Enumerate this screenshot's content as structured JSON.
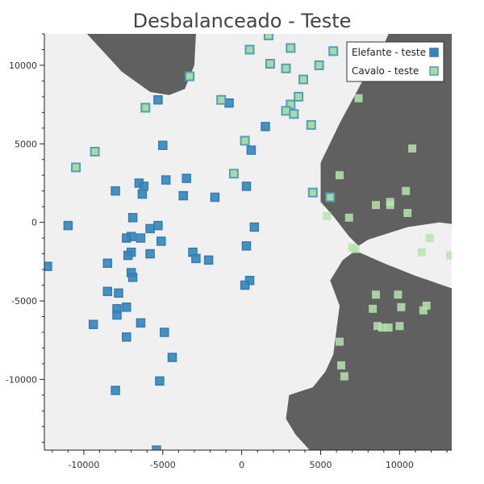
{
  "chart_data": {
    "type": "scatter",
    "title": "Desbalanceado - Teste",
    "xlabel": "",
    "ylabel": "",
    "xlim": [
      -12500,
      13300
    ],
    "ylim": [
      -14500,
      12000
    ],
    "grid": false,
    "legend_position": "top-right",
    "x_ticks": [
      -10000,
      -5000,
      0,
      5000,
      10000
    ],
    "y_ticks": [
      -10000,
      -5000,
      0,
      5000,
      10000
    ],
    "colors": {
      "region_light": "#f0f0f0",
      "region_dark": "#606060",
      "elefante_fill": "#2f87bf",
      "elefante_edge": "#3a7ab0",
      "cavalo_fill": "#a9dba0",
      "cavalo_edge": "#4f9ec4",
      "cavalo_plain_fill": "#b7e3ae"
    },
    "series": [
      {
        "name": "Elefante - teste",
        "points": [
          [
            -5300,
            7800
          ],
          [
            -800,
            7600
          ],
          [
            -5000,
            4900
          ],
          [
            1500,
            6100
          ],
          [
            600,
            4600
          ],
          [
            -8000,
            2000
          ],
          [
            -6500,
            2500
          ],
          [
            -6200,
            2300
          ],
          [
            -6300,
            1800
          ],
          [
            -4800,
            2700
          ],
          [
            -3500,
            2800
          ],
          [
            -3700,
            1700
          ],
          [
            -1700,
            1600
          ],
          [
            300,
            2300
          ],
          [
            -6900,
            300
          ],
          [
            -11000,
            -200
          ],
          [
            -7000,
            -900
          ],
          [
            -7300,
            -1000
          ],
          [
            -6400,
            -1000
          ],
          [
            -5800,
            -400
          ],
          [
            -5300,
            -200
          ],
          [
            -5100,
            -1200
          ],
          [
            -7000,
            -1900
          ],
          [
            -7200,
            -2100
          ],
          [
            -5800,
            -2000
          ],
          [
            -12300,
            -2800
          ],
          [
            -8500,
            -2600
          ],
          [
            -7000,
            -3200
          ],
          [
            -6900,
            -3500
          ],
          [
            -3100,
            -1900
          ],
          [
            -2900,
            -2300
          ],
          [
            -2100,
            -2400
          ],
          [
            300,
            -1500
          ],
          [
            800,
            -300
          ],
          [
            500,
            -3700
          ],
          [
            200,
            -4000
          ],
          [
            -8500,
            -4400
          ],
          [
            -7800,
            -4500
          ],
          [
            -7900,
            -5500
          ],
          [
            -7900,
            -5900
          ],
          [
            -7300,
            -5400
          ],
          [
            -9400,
            -6500
          ],
          [
            -6400,
            -6400
          ],
          [
            -4900,
            -7000
          ],
          [
            -7300,
            -7300
          ],
          [
            -4400,
            -8600
          ],
          [
            -5200,
            -10100
          ],
          [
            -8000,
            -10700
          ],
          [
            -5400,
            -14500
          ]
        ]
      },
      {
        "name": "Cavalo - teste",
        "points": [
          [
            1700,
            11900
          ],
          [
            500,
            11000
          ],
          [
            3100,
            11100
          ],
          [
            5800,
            10900
          ],
          [
            1800,
            10100
          ],
          [
            2800,
            9800
          ],
          [
            4900,
            10000
          ],
          [
            3900,
            9100
          ],
          [
            -3300,
            9300
          ],
          [
            -6100,
            7300
          ],
          [
            -1300,
            7800
          ],
          [
            3600,
            8000
          ],
          [
            3100,
            7500
          ],
          [
            2800,
            7100
          ],
          [
            3300,
            6900
          ],
          [
            4400,
            6200
          ],
          [
            -9300,
            4500
          ],
          [
            200,
            5200
          ],
          [
            -10500,
            3500
          ],
          [
            -500,
            3100
          ],
          [
            4500,
            1900
          ],
          [
            5600,
            1600
          ]
        ]
      },
      {
        "name": "",
        "points": [
          [
            7400,
            7900
          ],
          [
            10800,
            4700
          ],
          [
            6200,
            3000
          ],
          [
            10400,
            2000
          ],
          [
            9400,
            1300
          ],
          [
            8500,
            1100
          ],
          [
            9400,
            1100
          ],
          [
            10500,
            600
          ],
          [
            5400,
            400
          ],
          [
            6800,
            300
          ],
          [
            11900,
            -1000
          ],
          [
            7000,
            -1600
          ],
          [
            7200,
            -1700
          ],
          [
            11400,
            -1900
          ],
          [
            13200,
            -2100
          ],
          [
            8500,
            -4600
          ],
          [
            9900,
            -4600
          ],
          [
            8300,
            -5500
          ],
          [
            10100,
            -5400
          ],
          [
            11700,
            -5300
          ],
          [
            11500,
            -5600
          ],
          [
            8600,
            -6600
          ],
          [
            8900,
            -6700
          ],
          [
            9300,
            -6700
          ],
          [
            10000,
            -6600
          ],
          [
            6200,
            -7600
          ],
          [
            6300,
            -9100
          ],
          [
            6500,
            -9800
          ]
        ]
      }
    ],
    "regions_dark": [
      [
        [
          -9800,
          12000
        ],
        [
          -2900,
          12000
        ],
        [
          -3000,
          10000
        ],
        [
          -3600,
          8500
        ],
        [
          -4600,
          8100
        ],
        [
          -5800,
          8300
        ],
        [
          -7600,
          9600
        ]
      ],
      [
        [
          13300,
          12000
        ],
        [
          9300,
          12000
        ],
        [
          9000,
          11300
        ],
        [
          7700,
          9100
        ],
        [
          6200,
          6300
        ],
        [
          5000,
          3800
        ],
        [
          5000,
          1300
        ],
        [
          5800,
          400
        ],
        [
          6800,
          -900
        ],
        [
          7400,
          -1500
        ],
        [
          8000,
          -1100
        ],
        [
          10500,
          -300
        ],
        [
          12500,
          0
        ],
        [
          13300,
          -100
        ]
      ],
      [
        [
          13300,
          -4200
        ],
        [
          11000,
          -3400
        ],
        [
          9000,
          -2600
        ],
        [
          7200,
          -1800
        ],
        [
          6400,
          -2400
        ],
        [
          5600,
          -3700
        ],
        [
          6200,
          -5300
        ],
        [
          5800,
          -8400
        ],
        [
          5300,
          -9500
        ],
        [
          4500,
          -10500
        ],
        [
          3000,
          -11000
        ],
        [
          2800,
          -12500
        ],
        [
          3400,
          -13500
        ],
        [
          4300,
          -14500
        ],
        [
          13300,
          -14500
        ]
      ]
    ]
  },
  "legend": {
    "items": [
      {
        "label": "Elefante - teste"
      },
      {
        "label": "Cavalo - teste"
      }
    ]
  }
}
